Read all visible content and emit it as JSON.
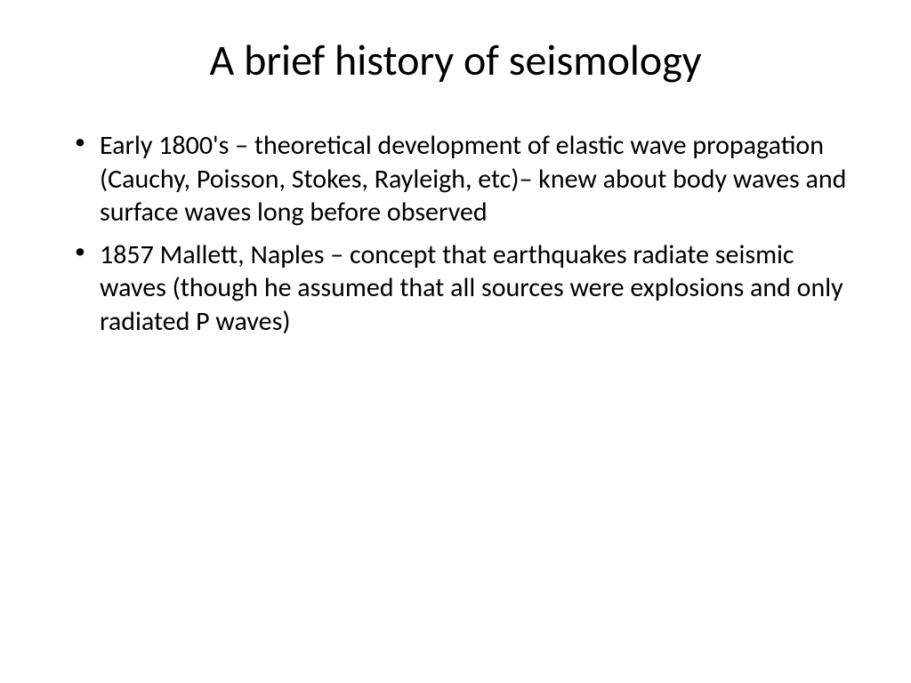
{
  "slide": {
    "title": "A brief history of seismology",
    "bullets": [
      "Early 1800's – theoretical development of elastic wave propagation (Cauchy, Poisson, Stokes, Rayleigh, etc)– knew about body waves and surface waves long before observed",
      "1857 Mallett, Naples – concept that earthquakes radiate seismic waves (though he assumed that all sources were explosions and only radiated P waves)"
    ]
  },
  "style": {
    "background_color": "#ffffff",
    "text_color": "#000000",
    "title_fontsize": 48,
    "title_fontweight": 400,
    "body_fontsize": 30,
    "font_family": "Calibri",
    "bullet_char": "•"
  }
}
